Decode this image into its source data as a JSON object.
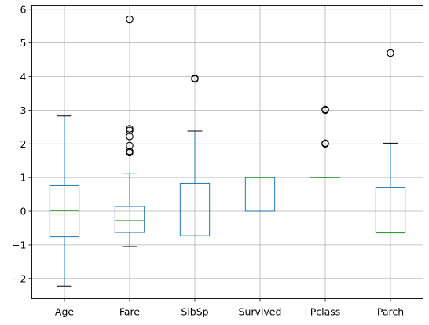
{
  "chart_data": {
    "type": "boxplot",
    "title": "",
    "xlabel": "",
    "ylabel": "",
    "categories": [
      "Age",
      "Fare",
      "SibSp",
      "Survived",
      "Pclass",
      "Parch"
    ],
    "ylim": [
      -2.6,
      6.1
    ],
    "yticks": [
      -2,
      -1,
      0,
      1,
      2,
      3,
      4,
      5,
      6
    ],
    "ytick_labels": [
      "−2",
      "−1",
      "0",
      "1",
      "2",
      "3",
      "4",
      "5",
      "6"
    ],
    "grid": true,
    "boxes": [
      {
        "name": "Age",
        "whisker_low": -2.22,
        "q1": -0.76,
        "median": 0.02,
        "q3": 0.76,
        "whisker_high": 2.83,
        "outliers": []
      },
      {
        "name": "Fare",
        "whisker_low": -1.05,
        "q1": -0.63,
        "median": -0.28,
        "q3": 0.14,
        "whisker_high": 1.13,
        "outliers": [
          1.74,
          1.78,
          1.95,
          2.22,
          2.4,
          2.45,
          5.7
        ]
      },
      {
        "name": "SibSp",
        "whisker_low": -0.73,
        "q1": -0.73,
        "median": -0.73,
        "q3": 0.83,
        "whisker_high": 2.38,
        "outliers": [
          3.93,
          3.95
        ]
      },
      {
        "name": "Survived",
        "whisker_low": 0.0,
        "q1": 0.0,
        "median": 1.0,
        "q3": 1.0,
        "whisker_high": 1.0,
        "outliers": []
      },
      {
        "name": "Pclass",
        "whisker_low": 1.0,
        "q1": 1.0,
        "median": 1.0,
        "q3": 1.0,
        "whisker_high": 1.0,
        "outliers": [
          2.0,
          2.02,
          3.0,
          3.02
        ]
      },
      {
        "name": "Parch",
        "whisker_low": -0.64,
        "q1": -0.64,
        "median": -0.64,
        "q3": 0.71,
        "whisker_high": 2.02,
        "outliers": [
          4.7
        ]
      }
    ],
    "colors": {
      "box": "#1f77b4",
      "median": "#2ca02c",
      "whisker_cap": "#000000",
      "outlier": "#000000",
      "grid": "#b0b0b0",
      "axes": "#000000"
    }
  }
}
